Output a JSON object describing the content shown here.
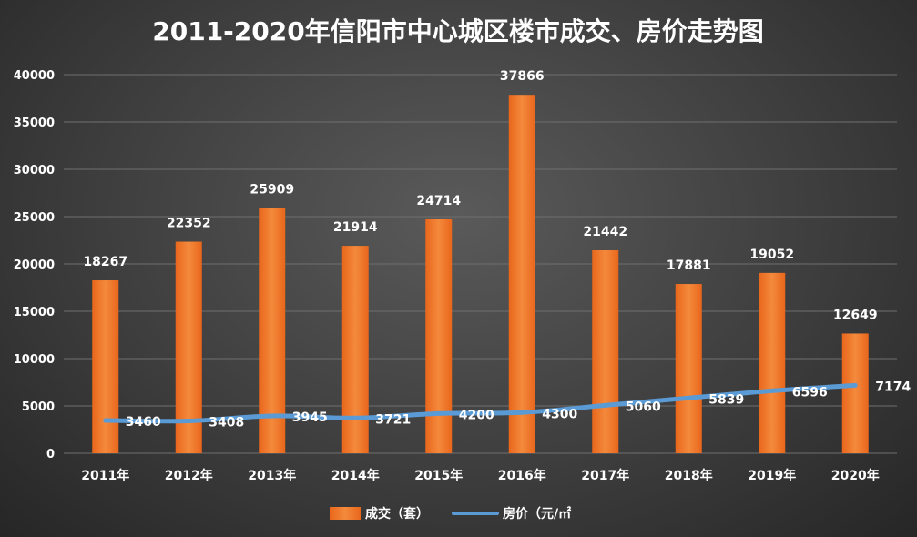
{
  "chart_data": {
    "type": "bar",
    "title": "2011-2020年信阳市中心城区楼市成交、房价走势图",
    "categories": [
      "2011年",
      "2012年",
      "2013年",
      "2014年",
      "2015年",
      "2016年",
      "2017年",
      "2018年",
      "2019年",
      "2020年"
    ],
    "series": [
      {
        "name": "成交（套）",
        "type": "bar",
        "color": "#f07a2a",
        "values": [
          18267,
          22352,
          25909,
          21914,
          24714,
          37866,
          21442,
          17881,
          19052,
          12649
        ]
      },
      {
        "name": "房价（元/㎡",
        "type": "line",
        "color": "#5b9bd5",
        "values": [
          3460,
          3408,
          3945,
          3721,
          4200,
          4300,
          5060,
          5839,
          6596,
          7174
        ]
      }
    ],
    "ylim": [
      0,
      40000
    ],
    "yticks": [
      0,
      5000,
      10000,
      15000,
      20000,
      25000,
      30000,
      35000,
      40000
    ],
    "grid": true,
    "legend": "bottom"
  }
}
